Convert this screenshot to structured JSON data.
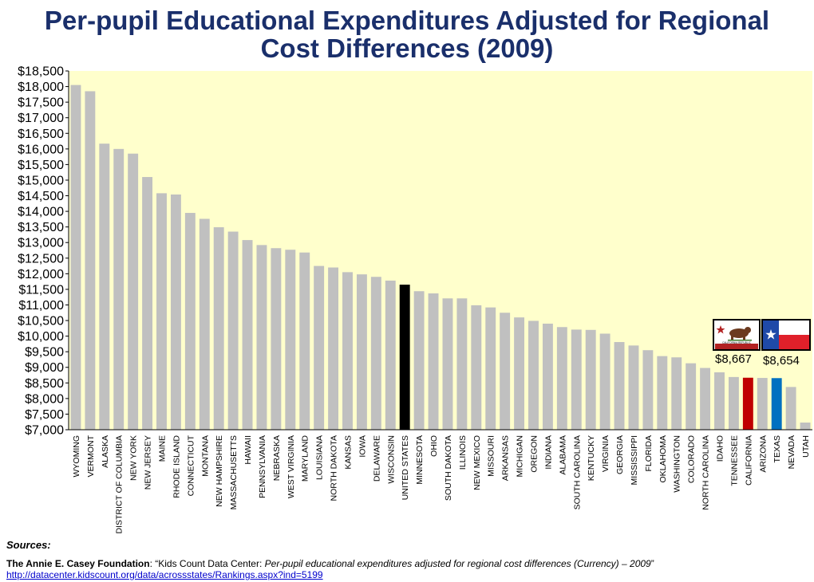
{
  "title": {
    "line1": "Per-pupil Educational Expenditures Adjusted for Regional",
    "line2": "Cost Differences (2009)"
  },
  "chart_data": {
    "type": "bar",
    "title": "Per-pupil Educational Expenditures Adjusted for Regional Cost Differences (2009)",
    "xlabel": "",
    "ylabel": "",
    "ylim": [
      7000,
      18500
    ],
    "ytick_step": 500,
    "ytick_prefix": "$",
    "grid": false,
    "categories": [
      "WYOMING",
      "VERMONT",
      "ALASKA",
      "DISTRICT OF COLUMBIA",
      "NEW YORK",
      "NEW JERSEY",
      "MAINE",
      "RHODE ISLAND",
      "CONNECTICUT",
      "MONTANA",
      "NEW HAMPSHIRE",
      "MASSACHUSETTS",
      "HAWAII",
      "PENNSYLVANIA",
      "NEBRASKA",
      "WEST VIRGINIA",
      "MARYLAND",
      "LOUISIANA",
      "NORTH DAKOTA",
      "KANSAS",
      "IOWA",
      "DELAWARE",
      "WISCONSIN",
      "UNITED STATES",
      "MINNESOTA",
      "OHIO",
      "SOUTH DAKOTA",
      "ILLINOIS",
      "NEW MEXICO",
      "MISSOURI",
      "ARKANSAS",
      "MICHIGAN",
      "OREGON",
      "INDIANA",
      "ALABAMA",
      "SOUTH CAROLINA",
      "KENTUCKY",
      "VIRGINIA",
      "GEORGIA",
      "MISSISSIPPI",
      "FLORIDA",
      "OKLAHOMA",
      "WASHINGTON",
      "COLORADO",
      "NORTH CAROLINA",
      "IDAHO",
      "TENNESSEE",
      "CALIFORNIA",
      "ARIZONA",
      "TEXAS",
      "NEVADA",
      "UTAH"
    ],
    "values": [
      18050,
      17850,
      16170,
      16000,
      15850,
      15100,
      14580,
      14540,
      13950,
      13760,
      13490,
      13350,
      13080,
      12920,
      12820,
      12770,
      12680,
      12250,
      12200,
      12050,
      11980,
      11900,
      11780,
      11650,
      11440,
      11370,
      11210,
      11210,
      10990,
      10920,
      10750,
      10600,
      10490,
      10400,
      10290,
      10210,
      10200,
      10080,
      9810,
      9700,
      9550,
      9360,
      9320,
      9130,
      8980,
      8840,
      8690,
      8667,
      8660,
      8654,
      8370,
      7230
    ],
    "bar_colors": {
      "default": "#c0c0c0",
      "UNITED STATES": "#000000",
      "CALIFORNIA": "#c00000",
      "TEXAS": "#0070c0"
    },
    "plot_background": "#ffffcc",
    "annotations": [
      {
        "category": "CALIFORNIA",
        "text": "$8,667",
        "icon": "california-flag"
      },
      {
        "category": "TEXAS",
        "text": "$8,654",
        "icon": "texas-flag"
      }
    ]
  },
  "flags": {
    "california_text": "CALIFORNIA REPUBLIC"
  },
  "sources": {
    "label": "Sources:",
    "org": "The Annie E. Casey Foundation",
    "prefix": ": “Kids Count Data Center: ",
    "title": "Per-pupil educational expenditures adjusted for regional cost differences (Currency) – 2009",
    "suffix": "”",
    "url": "http://datacenter.kidscount.org/data/acrossstates/Rankings.aspx?ind=5199"
  }
}
